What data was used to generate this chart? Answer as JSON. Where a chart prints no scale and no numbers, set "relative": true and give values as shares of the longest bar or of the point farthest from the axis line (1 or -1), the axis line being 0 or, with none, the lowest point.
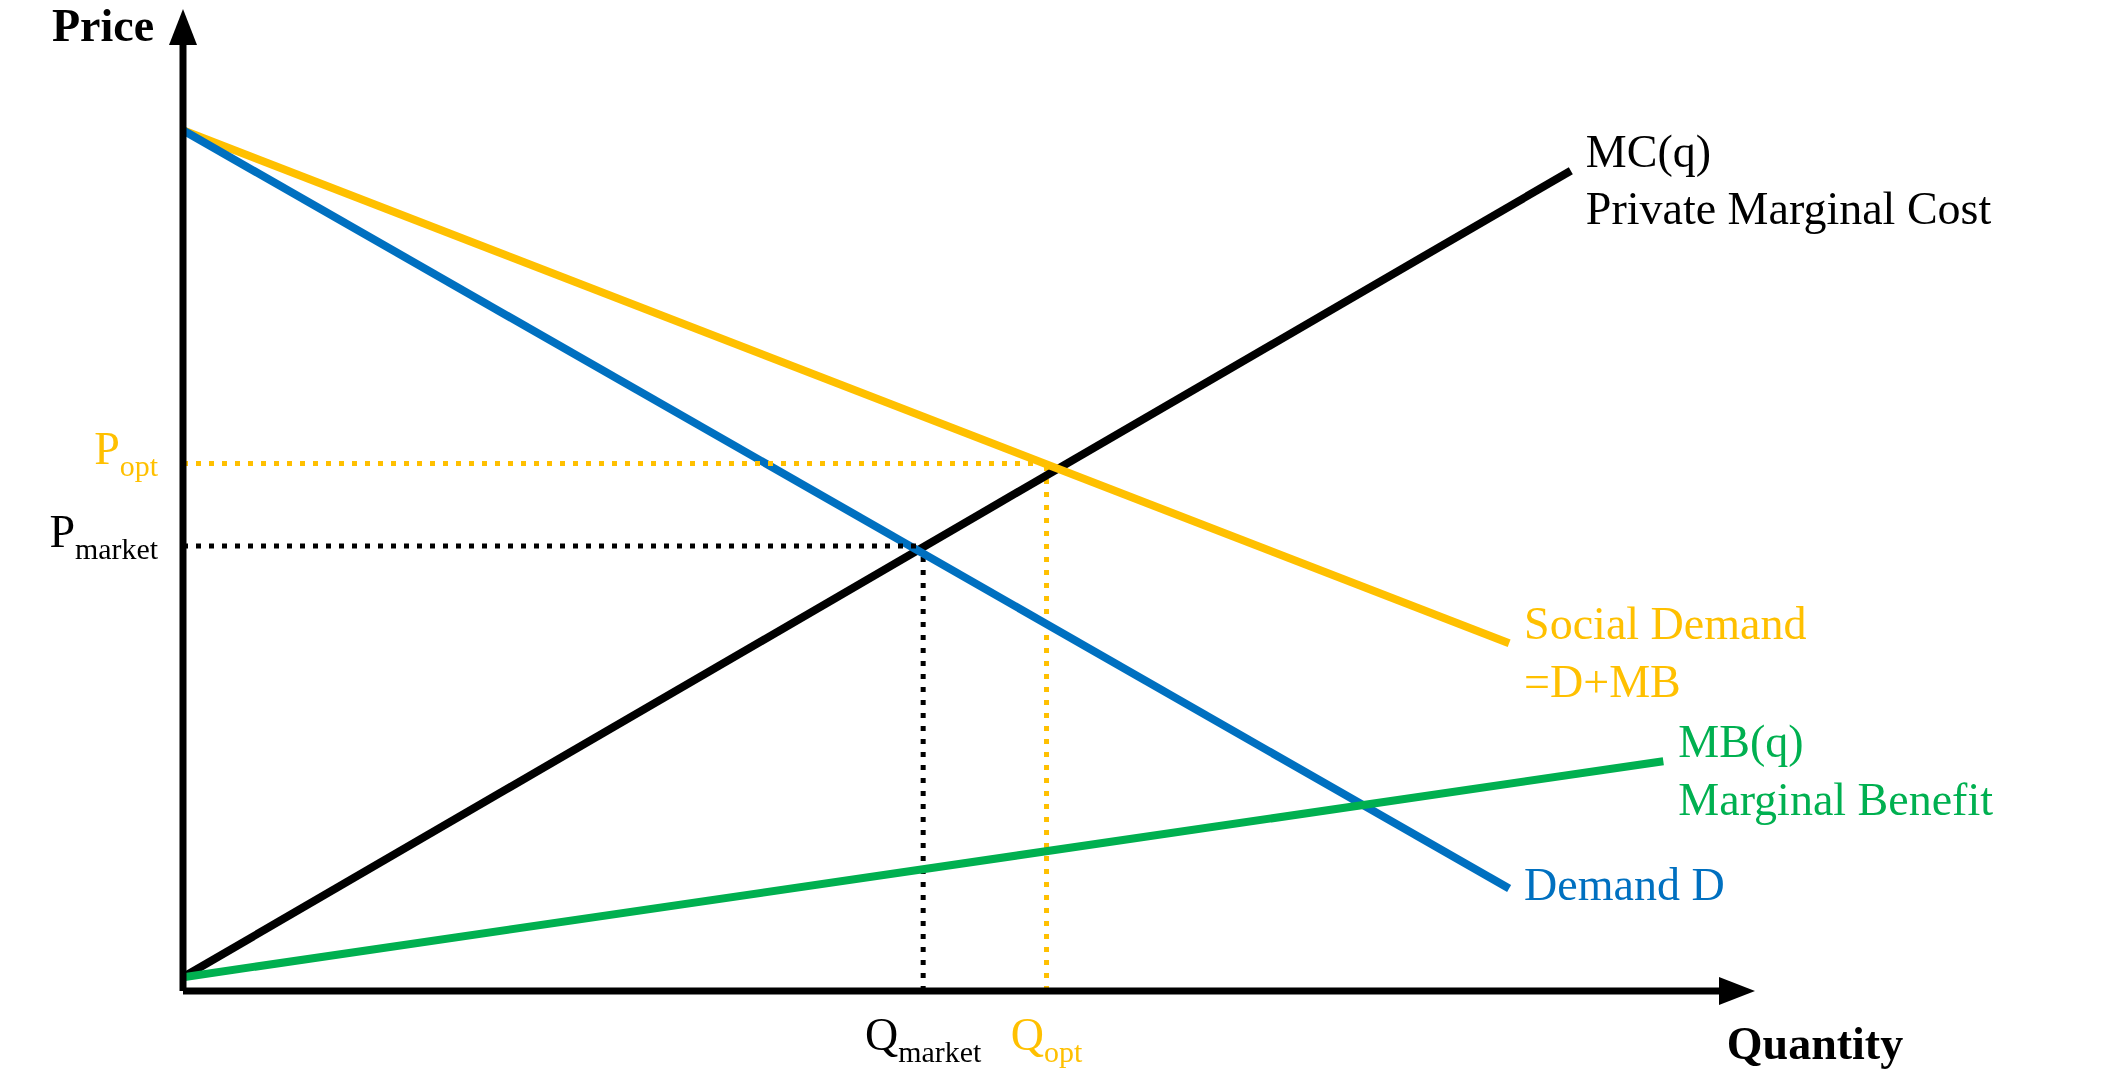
{
  "chart_data": {
    "type": "line",
    "relative": true,
    "xlabel": "Quantity",
    "ylabel": "Price",
    "legend": false,
    "grid": false,
    "marker": "none",
    "line_style": "solid",
    "categories": [
      null,
      null,
      null,
      null,
      null,
      null,
      null,
      null,
      null,
      null,
      null,
      null,
      null,
      null,
      null,
      null,
      null,
      null,
      null,
      null,
      null,
      null,
      null,
      null,
      "Q$_{market}$",
      null,
      null,
      null,
      "Q$_{opt}$",
      null,
      null,
      null,
      null,
      null,
      null,
      null,
      null,
      null,
      null,
      null,
      null,
      null,
      null,
      null,
      null,
      null,
      null,
      null,
      null,
      null,
      null
    ],
    "series": [
      {
        "name": "MC(q)\nPrivate Marginal Cost",
        "color": "#000000",
        "values": [
          0.016,
          null,
          null,
          null,
          null,
          null,
          null,
          null,
          null,
          null,
          null,
          null,
          null,
          null,
          null,
          null,
          null,
          null,
          null,
          null,
          null,
          null,
          null,
          null,
          null,
          null,
          null,
          null,
          null,
          null,
          null,
          null,
          null,
          null,
          null,
          null,
          null,
          null,
          null,
          null,
          null,
          null,
          null,
          null,
          null,
          0.953,
          null,
          null,
          null,
          null,
          null
        ]
      },
      {
        "name": "Social Demand\n=D+MB",
        "color": "#ffc000",
        "values": [
          1,
          null,
          null,
          null,
          null,
          null,
          null,
          null,
          null,
          null,
          null,
          null,
          null,
          null,
          null,
          null,
          null,
          null,
          null,
          null,
          null,
          null,
          null,
          null,
          null,
          null,
          null,
          null,
          null,
          null,
          null,
          null,
          null,
          null,
          null,
          null,
          null,
          null,
          null,
          null,
          null,
          null,
          null,
          0.404,
          null,
          null,
          null,
          null,
          null,
          null,
          null
        ]
      },
      {
        "name": "Demand D",
        "color": "#0070c0",
        "values": [
          1,
          null,
          null,
          null,
          null,
          null,
          null,
          null,
          null,
          null,
          null,
          null,
          null,
          null,
          null,
          null,
          null,
          null,
          null,
          null,
          null,
          null,
          null,
          null,
          null,
          null,
          null,
          null,
          null,
          null,
          null,
          null,
          null,
          null,
          null,
          null,
          null,
          null,
          null,
          null,
          null,
          null,
          null,
          0.119,
          null,
          null,
          null,
          null,
          null,
          null,
          null
        ]
      },
      {
        "name": "MB(q)\nMarginal Benefit",
        "color": "#00b050",
        "values": [
          0.016,
          null,
          null,
          null,
          null,
          null,
          null,
          null,
          null,
          null,
          null,
          null,
          null,
          null,
          null,
          null,
          null,
          null,
          null,
          null,
          null,
          null,
          null,
          null,
          null,
          null,
          null,
          null,
          null,
          null,
          null,
          null,
          null,
          null,
          null,
          null,
          null,
          null,
          null,
          null,
          null,
          null,
          null,
          null,
          null,
          null,
          null,
          null,
          0.267,
          null,
          null
        ]
      },
      {
        "name": "P$_{opt}$",
        "color": "#ffc000",
        "line_style": "dotted",
        "values": [
          0.613,
          null,
          null,
          null,
          null,
          null,
          null,
          null,
          null,
          null,
          null,
          null,
          null,
          null,
          null,
          null,
          null,
          null,
          null,
          null,
          null,
          null,
          null,
          null,
          null,
          null,
          null,
          null,
          0.613,
          null,
          null,
          null,
          null,
          null,
          null,
          null,
          null,
          null,
          null,
          null,
          null,
          null,
          null,
          null,
          null,
          null,
          null,
          null,
          null,
          null,
          null
        ]
      },
      {
        "name": "P$_{market}$",
        "color": "#000000",
        "line_style": "dotted",
        "values": [
          0.517,
          null,
          null,
          null,
          null,
          null,
          null,
          null,
          null,
          null,
          null,
          null,
          null,
          null,
          null,
          null,
          null,
          null,
          null,
          null,
          null,
          null,
          null,
          null,
          0.517,
          null,
          null,
          null,
          null,
          null,
          null,
          null,
          null,
          null,
          null,
          null,
          null,
          null,
          null,
          null,
          null,
          null,
          null,
          null,
          null,
          null,
          null,
          null,
          null,
          null,
          null
        ]
      }
    ],
    "ref_lines": [
      {
        "axis": "x",
        "value": "Q$_{market}$",
        "color": "#000000",
        "line_style": "dotted"
      },
      {
        "axis": "x",
        "value": "Q$_{opt}$",
        "color": "#ffc000",
        "line_style": "dotted"
      }
    ]
  }
}
